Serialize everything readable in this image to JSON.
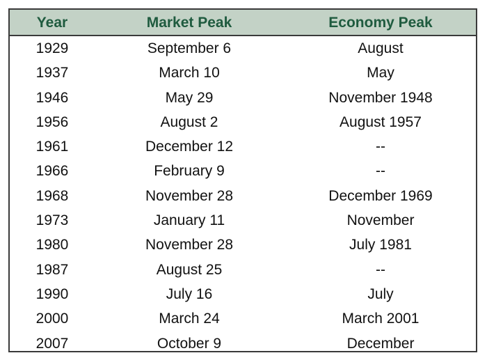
{
  "table": {
    "headers": [
      "Year",
      "Market Peak",
      "Economy Peak"
    ],
    "rows": [
      [
        "1929",
        "September 6",
        "August"
      ],
      [
        "1937",
        "March 10",
        "May"
      ],
      [
        "1946",
        "May 29",
        "November 1948"
      ],
      [
        "1956",
        "August 2",
        "August 1957"
      ],
      [
        "1961",
        "December 12",
        "--"
      ],
      [
        "1966",
        "February 9",
        "--"
      ],
      [
        "1968",
        "November 28",
        "December 1969"
      ],
      [
        "1973",
        "January 11",
        "November"
      ],
      [
        "1980",
        "November 28",
        "July 1981"
      ],
      [
        "1987",
        "August 25",
        "--"
      ],
      [
        "1990",
        "July 16",
        "July"
      ],
      [
        "2000",
        "March 24",
        "March 2001"
      ],
      [
        "2007",
        "October 9",
        "December"
      ]
    ]
  },
  "colors": {
    "header_bg": "#c3d2c6",
    "header_text": "#1f5b3f",
    "border": "#3a3a3a"
  }
}
